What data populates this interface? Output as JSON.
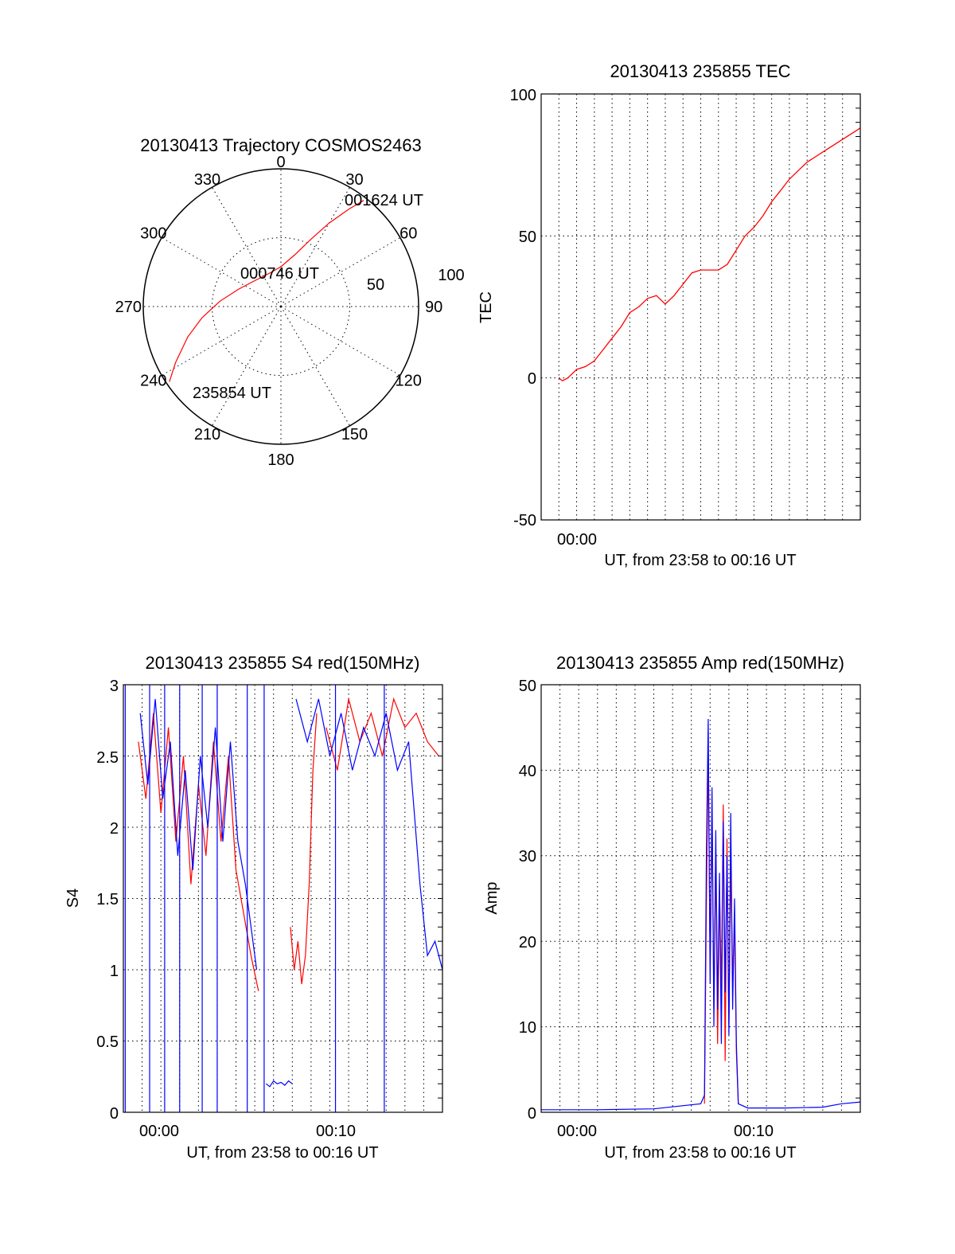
{
  "colors": {
    "red_series": "#ff0000",
    "blue_series": "#0000ff",
    "frame": "#000000",
    "background": "#ffffff"
  },
  "chart_data": [
    {
      "type": "polar",
      "title": "20130413 Trajectory COSMOS2463",
      "angle_labels": [
        "0",
        "30",
        "60",
        "90",
        "120",
        "150",
        "180",
        "210",
        "240",
        "270",
        "300",
        "330"
      ],
      "radius_labels": [
        "50",
        "100"
      ],
      "annotations": [
        "001624 UT",
        "000746 UT",
        "235854 UT"
      ],
      "series": [
        {
          "color": "#ff0000",
          "points_az_el": [
            [
              236,
              2
            ],
            [
              242,
              12
            ],
            [
              252,
              26
            ],
            [
              262,
              38
            ],
            [
              275,
              50
            ],
            [
              292,
              60
            ],
            [
              315,
              66
            ],
            [
              340,
              67
            ],
            [
              0,
              64
            ],
            [
              15,
              55
            ],
            [
              24,
              42
            ],
            [
              30,
              27
            ],
            [
              35,
              12
            ],
            [
              38,
              2
            ]
          ]
        }
      ]
    },
    {
      "type": "line",
      "title": "20130413 235855 TEC",
      "xlabel": "UT, from 23:58 to 00:16 UT",
      "ylabel": "TEC",
      "xlim": [
        -2,
        16
      ],
      "ylim": [
        -50,
        100
      ],
      "ytick_labels": [
        "100",
        "50",
        "0",
        "-50"
      ],
      "xtick_labels": [
        "00:00"
      ],
      "grid": true,
      "series": [
        {
          "color": "#ff0000",
          "x": [
            -1.0,
            -0.8,
            -0.5,
            0.0,
            0.5,
            1.0,
            1.5,
            2.0,
            2.5,
            3.0,
            3.5,
            4.0,
            4.5,
            5.0,
            5.5,
            6.0,
            6.5,
            7.0,
            7.5,
            8.0,
            8.5,
            9.0,
            9.5,
            10.0,
            10.5,
            11.0,
            11.5,
            12.0,
            12.5,
            13.0,
            13.5,
            14.0,
            14.5,
            15.0,
            15.5,
            16.0
          ],
          "y": [
            0,
            -1,
            0,
            3,
            4,
            6,
            10,
            14,
            18,
            23,
            25,
            28,
            29,
            26,
            29,
            33,
            37,
            38,
            38,
            38,
            40,
            45,
            50,
            53,
            57,
            62,
            66,
            70,
            73,
            76,
            78,
            80,
            82,
            84,
            86,
            88
          ]
        }
      ]
    },
    {
      "type": "line",
      "title": "20130413 235855 S4 red(150MHz)",
      "xlabel": "UT, from 23:58 to 00:16 UT",
      "ylabel": "S4",
      "xlim": [
        -1,
        16
      ],
      "ylim": [
        0,
        3
      ],
      "ytick_labels": [
        "3",
        "2.5",
        "2",
        "1.5",
        "1",
        "0.5",
        "0"
      ],
      "xtick_labels": [
        "00:00",
        "00:10"
      ],
      "grid": true,
      "series": [
        {
          "color": "#ff0000",
          "segments": [
            {
              "x": [
                -0.2,
                0.2,
                0.6,
                1.0,
                1.4,
                1.8,
                2.2,
                2.6,
                3.0,
                3.4,
                3.8,
                4.2,
                4.6,
                5.0,
                5.4,
                5.8,
                6.2
              ],
              "y": [
                2.6,
                2.2,
                2.8,
                2.1,
                2.7,
                1.9,
                2.5,
                1.6,
                2.3,
                1.8,
                2.6,
                1.9,
                2.5,
                1.7,
                1.4,
                1.1,
                0.85
              ]
            },
            {
              "x": [
                7.9,
                8.1,
                8.3,
                8.5,
                8.7,
                8.9,
                9.1,
                9.3
              ],
              "y": [
                1.3,
                1.0,
                1.2,
                0.9,
                1.1,
                1.6,
                2.4,
                2.8
              ]
            },
            {
              "x": [
                9.8,
                10.4,
                11.0,
                11.6,
                12.2,
                12.8,
                13.4,
                14.0,
                14.6,
                15.2,
                15.8
              ],
              "y": [
                2.7,
                2.4,
                2.9,
                2.6,
                2.8,
                2.5,
                2.9,
                2.7,
                2.8,
                2.6,
                2.5
              ]
            }
          ]
        },
        {
          "color": "#0000ff",
          "segments": [
            {
              "x": [
                -0.1,
                0.3,
                0.7,
                1.1,
                1.5,
                1.9,
                2.3,
                2.7,
                3.1,
                3.5,
                3.9,
                4.3,
                4.7,
                5.1,
                5.5,
                5.9,
                6.1
              ],
              "y": [
                2.8,
                2.3,
                2.9,
                2.2,
                2.6,
                1.8,
                2.4,
                1.7,
                2.5,
                2.0,
                2.7,
                1.9,
                2.6,
                1.9,
                1.6,
                1.2,
                1.0
              ]
            },
            {
              "x": [
                6.6,
                6.8,
                7.0,
                7.2,
                7.4,
                7.6,
                7.8,
                8.0
              ],
              "y": [
                0.2,
                0.18,
                0.22,
                0.2,
                0.21,
                0.19,
                0.22,
                0.2
              ]
            },
            {
              "x": [
                8.2,
                8.8,
                9.4,
                10.0,
                10.6,
                11.2,
                11.8,
                12.4,
                13.0,
                13.6,
                14.2,
                14.8,
                15.2,
                15.6,
                16.0
              ],
              "y": [
                2.9,
                2.6,
                2.9,
                2.5,
                2.8,
                2.4,
                2.7,
                2.5,
                2.8,
                2.4,
                2.6,
                1.6,
                1.1,
                1.2,
                1.0
              ]
            }
          ],
          "drops_to_zero_x": [
            -0.9,
            0.4,
            1.2,
            2.0,
            3.2,
            4.0,
            5.6,
            6.5,
            10.3,
            12.9
          ]
        }
      ]
    },
    {
      "type": "line",
      "title": "20130413 235855 Amp red(150MHz)",
      "xlabel": "UT, from 23:58 to 00:16 UT",
      "ylabel": "Amp",
      "xlim": [
        -1,
        16
      ],
      "ylim": [
        0,
        50
      ],
      "ytick_labels": [
        "50",
        "40",
        "30",
        "20",
        "10",
        "0"
      ],
      "xtick_labels": [
        "00:00",
        "00:10"
      ],
      "grid": true,
      "series": [
        {
          "color": "#ff0000",
          "x": [
            7.7,
            7.8,
            7.9,
            8.0,
            8.1,
            8.2,
            8.3,
            8.4,
            8.5,
            8.6,
            8.7,
            8.8,
            8.9,
            9.0,
            9.1,
            9.2,
            9.3,
            9.4,
            9.5
          ],
          "y": [
            1,
            24,
            42,
            18,
            35,
            12,
            30,
            8,
            26,
            14,
            36,
            6,
            32,
            10,
            29,
            16,
            22,
            7,
            1
          ]
        },
        {
          "color": "#0000ff",
          "x": [
            -1.0,
            2.0,
            5.0,
            7.5,
            7.7,
            7.8,
            7.9,
            8.0,
            8.1,
            8.2,
            8.3,
            8.4,
            8.5,
            8.6,
            8.7,
            8.8,
            8.9,
            9.0,
            9.1,
            9.2,
            9.3,
            9.4,
            9.5,
            10.0,
            12.0,
            14.0,
            15.0,
            16.0
          ],
          "y": [
            0.3,
            0.3,
            0.4,
            1.0,
            2,
            30,
            46,
            15,
            38,
            10,
            33,
            12,
            28,
            8,
            34,
            14,
            30,
            9,
            35,
            12,
            25,
            8,
            1,
            0.5,
            0.5,
            0.6,
            1.0,
            1.2
          ]
        }
      ]
    }
  ]
}
